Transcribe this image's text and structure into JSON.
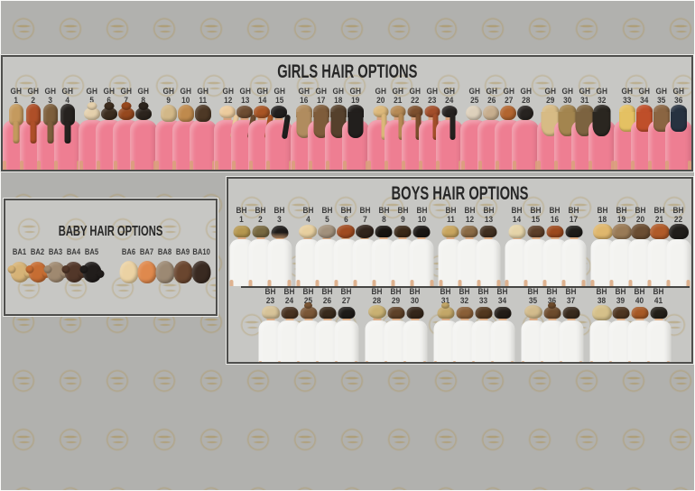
{
  "theme": {
    "background_color": "#b1b1ae",
    "panel_background_color": "#c7c7c4",
    "panel_border_color": "#4e4e4c",
    "watermark_color": "#b0924e",
    "label_color": "#3b3b3b",
    "title_color": "#272727"
  },
  "panels": {
    "girls": {
      "title": "GIRLS HAIR OPTIONS",
      "prefix": "GH",
      "shirt_color": "#ee7e92",
      "skin_color": "#d9a07c",
      "groups": [
        [
          {
            "n": 1,
            "style": "braid",
            "color": "#c49a5e"
          },
          {
            "n": 2,
            "style": "braid",
            "color": "#ae4f28"
          },
          {
            "n": 3,
            "style": "braid",
            "color": "#7d5f3c"
          },
          {
            "n": 4,
            "style": "braid",
            "color": "#26221f"
          }
        ],
        [
          {
            "n": 5,
            "style": "bun",
            "color": "#e4d0ac"
          },
          {
            "n": 6,
            "style": "bun",
            "color": "#3c2d1f"
          },
          {
            "n": 7,
            "style": "bun",
            "color": "#96481e"
          },
          {
            "n": 8,
            "style": "bun",
            "color": "#2c241d"
          }
        ],
        [
          {
            "n": 9,
            "style": "bob",
            "color": "#d2b888"
          },
          {
            "n": 10,
            "style": "bob",
            "color": "#bf8a4d"
          },
          {
            "n": 11,
            "style": "bob",
            "color": "#4d3825"
          }
        ],
        [
          {
            "n": 12,
            "style": "side-ponytail",
            "color": "#eccb9d"
          },
          {
            "n": 13,
            "style": "side-ponytail",
            "color": "#6d4c31"
          },
          {
            "n": 14,
            "style": "side-ponytail",
            "color": "#a85424"
          },
          {
            "n": 15,
            "style": "side-ponytail",
            "color": "#211f1e"
          }
        ],
        [
          {
            "n": 16,
            "style": "long",
            "color": "#b08c5f"
          },
          {
            "n": 17,
            "style": "long",
            "color": "#7e5c3b"
          },
          {
            "n": 18,
            "style": "long",
            "color": "#55402c"
          },
          {
            "n": 19,
            "style": "long",
            "color": "#221f1d"
          }
        ],
        [
          {
            "n": 20,
            "style": "braided-ponytail",
            "color": "#dcb87a"
          },
          {
            "n": 21,
            "style": "braided-ponytail",
            "color": "#b68a55"
          },
          {
            "n": 22,
            "style": "braided-ponytail",
            "color": "#7c4f2d"
          },
          {
            "n": 23,
            "style": "braided-ponytail",
            "color": "#a34e2a"
          },
          {
            "n": 24,
            "style": "braided-ponytail",
            "color": "#262220"
          }
        ],
        [
          {
            "n": 25,
            "style": "short-bob",
            "color": "#ddd0bb"
          },
          {
            "n": 26,
            "style": "short-bob",
            "color": "#c7ae8e"
          },
          {
            "n": 27,
            "style": "short-bob",
            "color": "#b2652f"
          },
          {
            "n": 28,
            "style": "short-bob",
            "color": "#272320"
          }
        ],
        [
          {
            "n": 29,
            "style": "wavy",
            "color": "#d7bb85"
          },
          {
            "n": 30,
            "style": "wavy",
            "color": "#a3854f"
          },
          {
            "n": 31,
            "style": "wavy",
            "color": "#7c6340"
          },
          {
            "n": 32,
            "style": "wavy",
            "color": "#2a2620"
          }
        ],
        [
          {
            "n": 33,
            "style": "straight",
            "color": "#e4c163"
          },
          {
            "n": 34,
            "style": "straight",
            "color": "#bf4f2a"
          },
          {
            "n": 35,
            "style": "straight",
            "color": "#8a6542"
          },
          {
            "n": 36,
            "style": "straight",
            "color": "#273240"
          }
        ]
      ]
    },
    "boys": {
      "title": "BOYS HAIR OPTIONS",
      "prefix": "BH",
      "shirt_color": "#f3f3f0",
      "skin_color": "#dcab84",
      "row1_groups": [
        [
          {
            "n": 1,
            "style": "crop",
            "color": "#b5974f"
          },
          {
            "n": 2,
            "style": "crop",
            "color": "#77683f"
          },
          {
            "n": 3,
            "style": "fade",
            "color": "#1e1b19"
          }
        ],
        [
          {
            "n": 4,
            "style": "curly",
            "color": "#e7cf9f"
          },
          {
            "n": 5,
            "style": "curly",
            "color": "#a2917c"
          },
          {
            "n": 6,
            "style": "curly",
            "color": "#a04b20"
          },
          {
            "n": 7,
            "style": "curly",
            "color": "#30231b"
          },
          {
            "n": 8,
            "style": "crop",
            "color": "#17130f"
          },
          {
            "n": 9,
            "style": "crop",
            "color": "#3a2817"
          },
          {
            "n": 10,
            "style": "crop",
            "color": "#1a1613"
          }
        ],
        [
          {
            "n": 11,
            "style": "crop",
            "color": "#c8a55e"
          },
          {
            "n": 12,
            "style": "crop",
            "color": "#8a6a44"
          },
          {
            "n": 13,
            "style": "crop",
            "color": "#402f20"
          }
        ],
        [
          {
            "n": 14,
            "style": "flat",
            "color": "#e5d4a9"
          },
          {
            "n": 15,
            "style": "crop",
            "color": "#5c3e28"
          },
          {
            "n": 16,
            "style": "crop",
            "color": "#9c491d"
          },
          {
            "n": 17,
            "style": "crop",
            "color": "#1d1b18"
          }
        ],
        [
          {
            "n": 18,
            "style": "shaggy",
            "color": "#dfb76d"
          },
          {
            "n": 19,
            "style": "shaggy",
            "color": "#997a56"
          },
          {
            "n": 20,
            "style": "shaggy",
            "color": "#6a4d32"
          },
          {
            "n": 21,
            "style": "shaggy",
            "color": "#b05a28"
          },
          {
            "n": 22,
            "style": "shaggy",
            "color": "#201d1a"
          }
        ]
      ],
      "row2_groups": [
        [
          {
            "n": 23,
            "style": "side-swept",
            "color": "#d7c398"
          },
          {
            "n": 24,
            "style": "crop",
            "color": "#483221"
          },
          {
            "n": 25,
            "style": "man-bun",
            "color": "#7b5737"
          },
          {
            "n": 26,
            "style": "crop",
            "color": "#392a1c"
          },
          {
            "n": 27,
            "style": "crop",
            "color": "#1e1b18"
          }
        ],
        [
          {
            "n": 28,
            "style": "messy",
            "color": "#c9b173"
          },
          {
            "n": 29,
            "style": "crop",
            "color": "#5e4128"
          },
          {
            "n": 30,
            "style": "crop",
            "color": "#34261a"
          }
        ],
        [
          {
            "n": 31,
            "style": "man-bun",
            "color": "#c3a768"
          },
          {
            "n": 32,
            "style": "crop",
            "color": "#8a5f37"
          },
          {
            "n": 33,
            "style": "crop",
            "color": "#52371e"
          },
          {
            "n": 34,
            "style": "crop",
            "color": "#231d17"
          }
        ],
        [
          {
            "n": 35,
            "style": "messy",
            "color": "#d2bb8c"
          },
          {
            "n": 36,
            "style": "man-bun",
            "color": "#6d4b2c"
          },
          {
            "n": 37,
            "style": "crop",
            "color": "#392a1d"
          }
        ],
        [
          {
            "n": 38,
            "style": "shaggy",
            "color": "#d5c08a"
          },
          {
            "n": 39,
            "style": "crop",
            "color": "#4e3520"
          },
          {
            "n": 40,
            "style": "crop",
            "color": "#a75925"
          },
          {
            "n": 41,
            "style": "crop",
            "color": "#231f18"
          }
        ]
      ]
    },
    "baby": {
      "title": "BABY HAIR OPTIONS",
      "prefix": "BA",
      "groups": [
        [
          {
            "n": 1,
            "style": "baby-curly",
            "color": "#d6b377"
          },
          {
            "n": 2,
            "style": "baby-curly",
            "color": "#c66d33"
          },
          {
            "n": 3,
            "style": "baby-curly",
            "color": "#9f8970"
          },
          {
            "n": 4,
            "style": "baby-curly",
            "color": "#523729"
          },
          {
            "n": 5,
            "style": "baby-curly",
            "color": "#211d1b"
          }
        ],
        [
          {
            "n": 6,
            "style": "baby-smooth",
            "color": "#ebd2a3"
          },
          {
            "n": 7,
            "style": "baby-smooth",
            "color": "#df894d"
          },
          {
            "n": 8,
            "style": "baby-smooth",
            "color": "#9c8973"
          },
          {
            "n": 9,
            "style": "baby-smooth",
            "color": "#6a462f"
          },
          {
            "n": 10,
            "style": "baby-smooth",
            "color": "#392a21"
          }
        ]
      ]
    }
  }
}
